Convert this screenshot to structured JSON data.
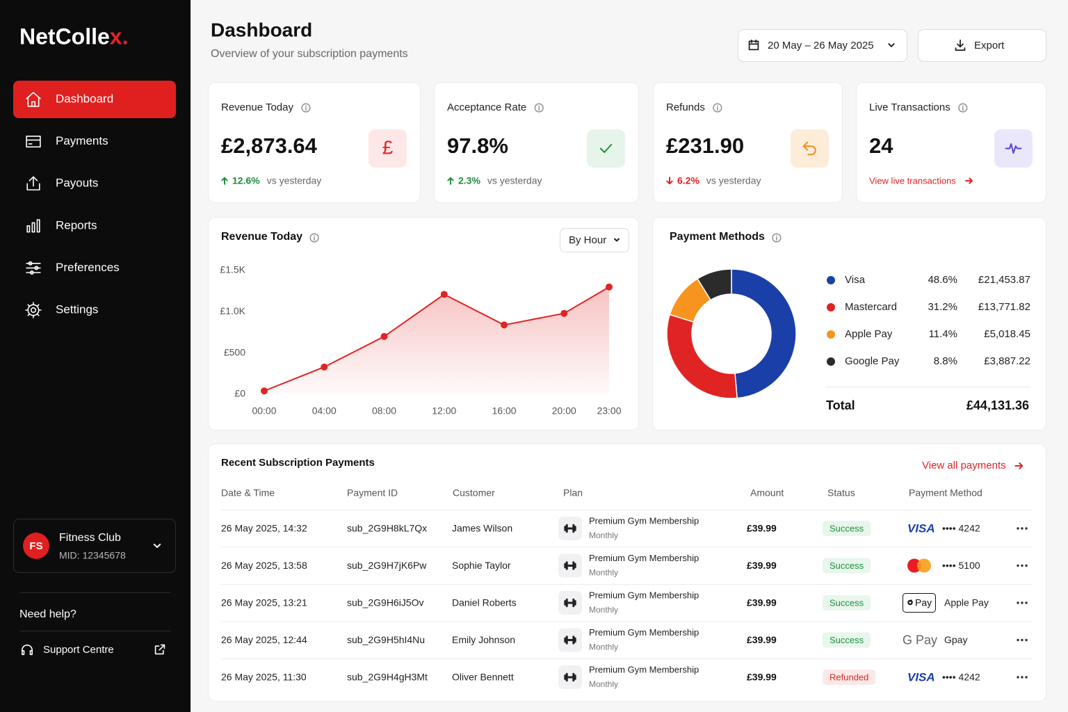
{
  "sidebar": {
    "brand": {
      "text": "NetColle",
      "accent": "x."
    },
    "nav": [
      "Dashboard",
      "Payments",
      "Payouts",
      "Reports",
      "Preferences",
      "Settings"
    ],
    "nav_icons": [
      "home",
      "card",
      "upload",
      "bars",
      "sliders",
      "gear"
    ],
    "active": 0,
    "account": {
      "initials": "FS",
      "name": "Fitness Club",
      "mid": "MID: 12345678"
    },
    "help": "Need help?",
    "support": "Support Centre"
  },
  "header": {
    "title": "Dashboard",
    "subtitle": "Overview of your subscription payments",
    "date_range": "20 May – 26 May 2025",
    "export": "Export"
  },
  "kpis": [
    {
      "title": "Revenue Today",
      "value": "£2,873.64",
      "change": "12.6%",
      "direction": "up",
      "note": "vs yesterday",
      "symbol": "£",
      "color": "#e02424",
      "bg": "#fde7e7"
    },
    {
      "title": "Acceptance Rate",
      "value": "97.8%",
      "change": "2.3%",
      "direction": "up",
      "note": "vs yesterday",
      "icon": "check",
      "color": "#1e8e3e",
      "bg": "#e6f4ea"
    },
    {
      "title": "Refunds",
      "value": "£231.90",
      "change": "6.2%",
      "direction": "down",
      "note": "vs yesterday",
      "icon": "undo",
      "color": "#f08c1a",
      "bg": "#fdecd8"
    },
    {
      "title": "Live Transactions",
      "value": "24",
      "link": "View live transactions",
      "icon": "pulse",
      "color": "#5b3fd6",
      "bg": "#ebe7fb"
    }
  ],
  "chart_data": [
    {
      "type": "line",
      "title": "Revenue Today",
      "control": "By Hour",
      "x": [
        0,
        4,
        8,
        12,
        16,
        20,
        23
      ],
      "values": [
        40,
        330,
        700,
        1210,
        840,
        980,
        1300
      ],
      "xlim": [
        0,
        23
      ],
      "xticks": [
        {
          "value": 0,
          "label": "00:00"
        },
        {
          "value": 4,
          "label": "04:00"
        },
        {
          "value": 8,
          "label": "08:00"
        },
        {
          "value": 12,
          "label": "12:00"
        },
        {
          "value": 16,
          "label": "16:00"
        },
        {
          "value": 20,
          "label": "20:00"
        },
        {
          "value": 23,
          "label": "23:00"
        }
      ],
      "ylim": [
        0,
        1500
      ],
      "yticks": [
        {
          "value": 0,
          "label": "£0"
        },
        {
          "value": 500,
          "label": "£500"
        },
        {
          "value": 1000,
          "label": "£1.0K"
        },
        {
          "value": 1500,
          "label": "£1.5K"
        }
      ],
      "color": "#e02424",
      "grid": false,
      "area": true
    },
    {
      "type": "pie",
      "title": "Payment Methods",
      "donut": true,
      "categories": [
        "Visa",
        "Mastercard",
        "Apple Pay",
        "Google Pay"
      ],
      "values": [
        48.6,
        31.2,
        11.4,
        8.8
      ],
      "value_labels": [
        "48.6%",
        "31.2%",
        "11.4%",
        "8.8%"
      ],
      "amounts": [
        "£21,453.87",
        "£13,771.82",
        "£5,018.45",
        "£3,887.22"
      ],
      "colors": [
        "#1a3fa8",
        "#e02424",
        "#f7941d",
        "#2b2b2b"
      ],
      "total_label": "Total",
      "total": "£44,131.36"
    }
  ],
  "table": {
    "title": "Recent Subscription Payments",
    "link": "View all payments",
    "columns": [
      "Date & Time",
      "Payment ID",
      "Customer",
      "Plan",
      "Amount",
      "Status",
      "Payment Method"
    ],
    "rows": [
      {
        "date": "26 May 2025, 14:32",
        "id": "sub_2G9H8kL7Qx",
        "customer": "James Wilson",
        "plan": "Premium Gym Membership",
        "period": "Monthly",
        "amount": "£39.99",
        "status": "Success",
        "method": {
          "kind": "visa",
          "logo": "VISA",
          "detail": "•••• 4242"
        }
      },
      {
        "date": "26 May 2025, 13:58",
        "id": "sub_2G9H7jK6Pw",
        "customer": "Sophie Taylor",
        "plan": "Premium Gym Membership",
        "period": "Monthly",
        "amount": "£39.99",
        "status": "Success",
        "method": {
          "kind": "mastercard",
          "detail": "•••• 5100"
        }
      },
      {
        "date": "26 May 2025, 13:21",
        "id": "sub_2G9H6iJ5Ov",
        "customer": "Daniel Roberts",
        "plan": "Premium Gym Membership",
        "period": "Monthly",
        "amount": "£39.99",
        "status": "Success",
        "method": {
          "kind": "applepay",
          "logo": "Pay",
          "detail": "Apple Pay"
        }
      },
      {
        "date": "26 May 2025, 12:44",
        "id": "sub_2G9H5hI4Nu",
        "customer": "Emily Johnson",
        "plan": "Premium Gym Membership",
        "period": "Monthly",
        "amount": "£39.99",
        "status": "Success",
        "method": {
          "kind": "gpay",
          "logo": "G Pay",
          "detail": "Gpay"
        }
      },
      {
        "date": "26 May 2025, 11:30",
        "id": "sub_2G9H4gH3Mt",
        "customer": "Oliver Bennett",
        "plan": "Premium Gym Membership",
        "period": "Monthly",
        "amount": "£39.99",
        "status": "Refunded",
        "method": {
          "kind": "visa",
          "logo": "VISA",
          "detail": "•••• 4242"
        }
      }
    ]
  }
}
